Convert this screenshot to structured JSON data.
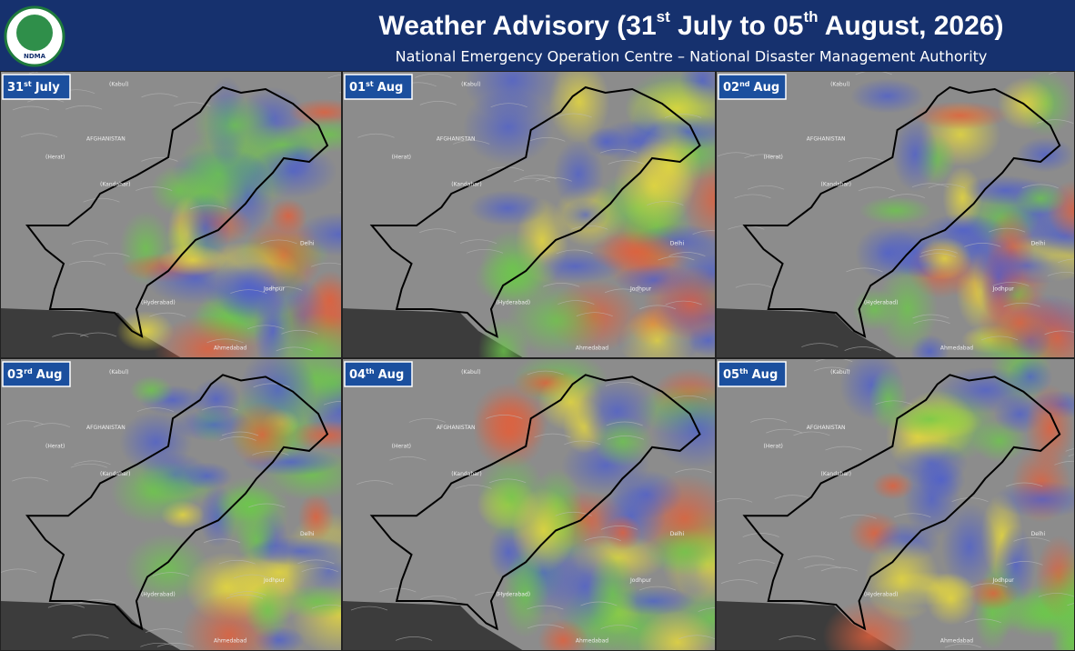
{
  "header": {
    "logo_text": "NDMA",
    "title": [
      "Weather Advisory (31",
      "st",
      " July to 05",
      "th",
      " August, 2026)"
    ],
    "subtitle": "National Emergency Operation Centre – National Disaster Management Authority"
  },
  "panels": [
    {
      "day": "31",
      "suffix": "st",
      "month": "July"
    },
    {
      "day": "01",
      "suffix": "st",
      "month": "Aug"
    },
    {
      "day": "02",
      "suffix": "nd",
      "month": "Aug"
    },
    {
      "day": "03",
      "suffix": "rd",
      "month": "Aug"
    },
    {
      "day": "04",
      "suffix": "th",
      "month": "Aug"
    },
    {
      "day": "05",
      "suffix": "th",
      "month": "Aug"
    }
  ],
  "map_labels": [
    "(Kabul)",
    "AFGHANISTAN",
    "(Herat)",
    "(Kandahar)",
    "Delhi",
    "Ahmedabad",
    "Jodhpur",
    "(Hyderabad)"
  ]
}
